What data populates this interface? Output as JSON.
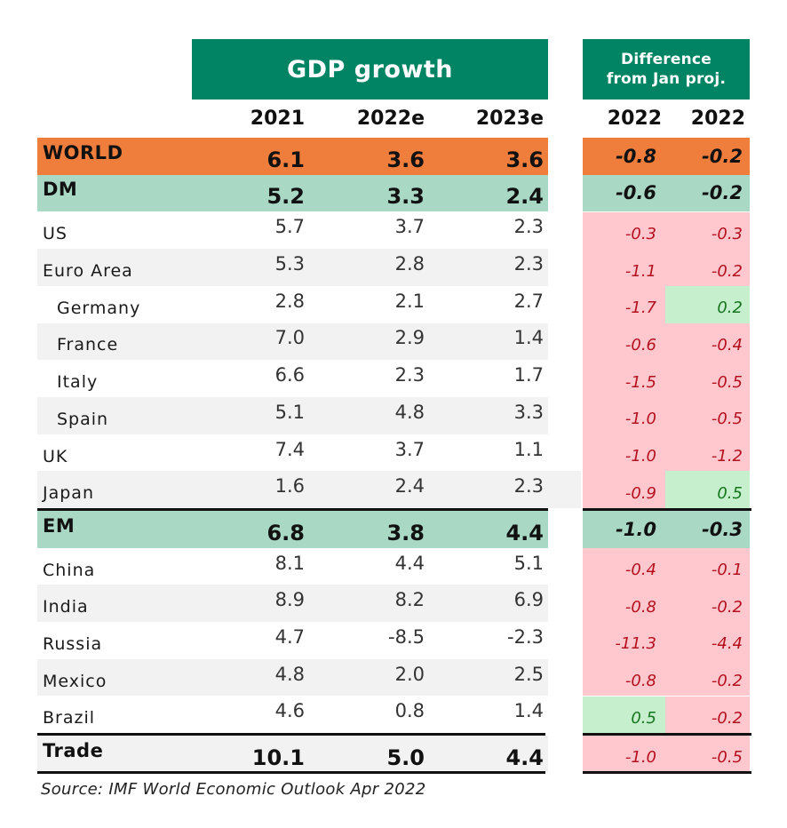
{
  "headers": {
    "gdp_title": "GDP growth",
    "diff_title_line1": "Difference",
    "diff_title_line2": "from Jan proj.",
    "years": [
      "2021",
      "2022e",
      "2023e"
    ],
    "diff_years": [
      "2022",
      "2022"
    ]
  },
  "rows": [
    {
      "label": "WORLD",
      "type": "world",
      "values": [
        "6.1",
        "3.6",
        "3.6"
      ],
      "diff": [
        "-0.8",
        "-0.2"
      ],
      "diff_sign": [
        "neg",
        "neg"
      ]
    },
    {
      "label": "DM",
      "type": "aggregate",
      "values": [
        "5.2",
        "3.3",
        "2.4"
      ],
      "diff": [
        "-0.6",
        "-0.2"
      ],
      "diff_sign": [
        "neg",
        "neg"
      ]
    },
    {
      "label": "US",
      "type": "country",
      "values": [
        "5.7",
        "3.7",
        "2.3"
      ],
      "diff": [
        "-0.3",
        "-0.3"
      ],
      "diff_sign": [
        "neg",
        "neg"
      ]
    },
    {
      "label": "Euro Area",
      "type": "country",
      "values": [
        "5.3",
        "2.8",
        "2.3"
      ],
      "diff": [
        "-1.1",
        "-0.2"
      ],
      "diff_sign": [
        "neg",
        "neg"
      ]
    },
    {
      "label": "Germany",
      "type": "sub-country",
      "values": [
        "2.8",
        "2.1",
        "2.7"
      ],
      "diff": [
        "-1.7",
        "0.2"
      ],
      "diff_sign": [
        "neg",
        "pos"
      ]
    },
    {
      "label": "France",
      "type": "sub-country",
      "values": [
        "7.0",
        "2.9",
        "1.4"
      ],
      "diff": [
        "-0.6",
        "-0.4"
      ],
      "diff_sign": [
        "neg",
        "neg"
      ]
    },
    {
      "label": "Italy",
      "type": "sub-country",
      "values": [
        "6.6",
        "2.3",
        "1.7"
      ],
      "diff": [
        "-1.5",
        "-0.5"
      ],
      "diff_sign": [
        "neg",
        "neg"
      ]
    },
    {
      "label": "Spain",
      "type": "sub-country",
      "values": [
        "5.1",
        "4.8",
        "3.3"
      ],
      "diff": [
        "-1.0",
        "-0.5"
      ],
      "diff_sign": [
        "neg",
        "neg"
      ]
    },
    {
      "label": "UK",
      "type": "country",
      "values": [
        "7.4",
        "3.7",
        "1.1"
      ],
      "diff": [
        "-1.0",
        "-1.2"
      ],
      "diff_sign": [
        "neg",
        "neg"
      ]
    },
    {
      "label": "Japan",
      "type": "country",
      "values": [
        "1.6",
        "2.4",
        "2.3"
      ],
      "diff": [
        "-0.9",
        "0.5"
      ],
      "diff_sign": [
        "neg",
        "pos"
      ]
    },
    {
      "label": "EM",
      "type": "aggregate",
      "values": [
        "6.8",
        "3.8",
        "4.4"
      ],
      "diff": [
        "-1.0",
        "-0.3"
      ],
      "diff_sign": [
        "neg",
        "neg"
      ]
    },
    {
      "label": "China",
      "type": "country",
      "values": [
        "8.1",
        "4.4",
        "5.1"
      ],
      "diff": [
        "-0.4",
        "-0.1"
      ],
      "diff_sign": [
        "neg",
        "neg"
      ]
    },
    {
      "label": "India",
      "type": "country",
      "values": [
        "8.9",
        "8.2",
        "6.9"
      ],
      "diff": [
        "-0.8",
        "-0.2"
      ],
      "diff_sign": [
        "neg",
        "neg"
      ]
    },
    {
      "label": "Russia",
      "type": "country",
      "values": [
        "4.7",
        "-8.5",
        "-2.3"
      ],
      "diff": [
        "-11.3",
        "-4.4"
      ],
      "diff_sign": [
        "neg",
        "neg"
      ]
    },
    {
      "label": "Mexico",
      "type": "country",
      "values": [
        "4.8",
        "2.0",
        "2.5"
      ],
      "diff": [
        "-0.8",
        "-0.2"
      ],
      "diff_sign": [
        "neg",
        "neg"
      ]
    },
    {
      "label": "Brazil",
      "type": "country",
      "values": [
        "4.6",
        "0.8",
        "1.4"
      ],
      "diff": [
        "0.5",
        "-0.2"
      ],
      "diff_sign": [
        "pos",
        "neg"
      ]
    },
    {
      "label": "Trade",
      "type": "trade",
      "values": [
        "10.1",
        "5.0",
        "4.4"
      ],
      "diff": [
        "-1.0",
        "-0.5"
      ],
      "diff_sign": [
        "neg",
        "neg"
      ]
    }
  ],
  "source": "Source: IMF World Economic Outlook Apr 2022",
  "colors": {
    "header_green": "#008463",
    "world_orange": "#ef7d3b",
    "aggregate_mint": "#a9d8c5",
    "negative_pink": "#ffc7ce",
    "positive_green": "#c6efce",
    "negative_text": "#b5101e",
    "positive_text": "#17751d"
  }
}
